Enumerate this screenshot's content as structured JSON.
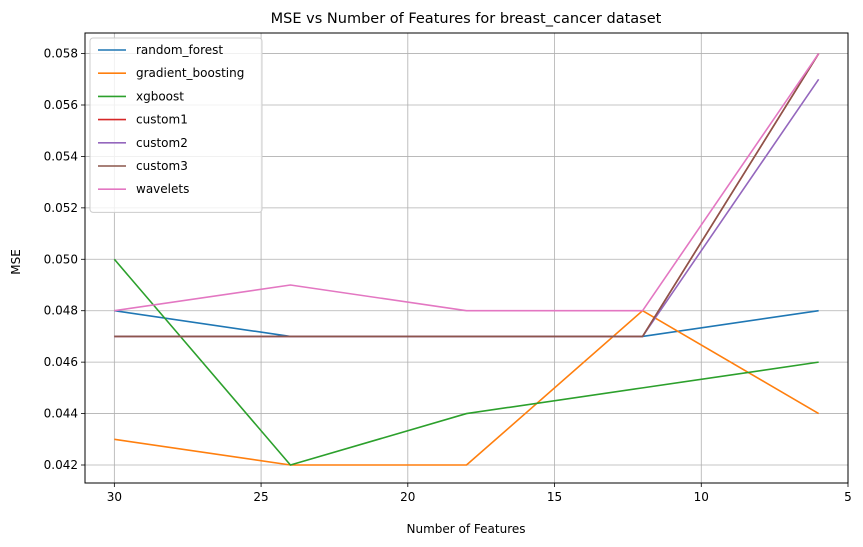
{
  "chart_data": {
    "type": "line",
    "title": "MSE vs Number of Features for breast_cancer dataset",
    "xlabel": "Number of Features",
    "ylabel": "MSE",
    "x": [
      30,
      24,
      18,
      12,
      6
    ],
    "xlim": [
      31,
      5
    ],
    "ylim": [
      0.0413,
      0.0588
    ],
    "x_inverted": true,
    "xticks": [
      30,
      25,
      20,
      15,
      10,
      5
    ],
    "yticks": [
      0.042,
      0.044,
      0.046,
      0.048,
      0.05,
      0.052,
      0.054,
      0.056,
      0.058
    ],
    "ytick_labels": [
      "0.042",
      "0.044",
      "0.046",
      "0.048",
      "0.050",
      "0.052",
      "0.054",
      "0.056",
      "0.058"
    ],
    "grid": true,
    "legend_position": "upper-left",
    "series": [
      {
        "name": "random_forest",
        "color": "#1f77b4",
        "values": [
          0.048,
          0.047,
          0.047,
          0.047,
          0.048
        ]
      },
      {
        "name": "gradient_boosting",
        "color": "#ff7f0e",
        "values": [
          0.043,
          0.042,
          0.042,
          0.048,
          0.044
        ]
      },
      {
        "name": "xgboost",
        "color": "#2ca02c",
        "values": [
          0.05,
          0.042,
          0.044,
          0.045,
          0.046
        ]
      },
      {
        "name": "custom1",
        "color": "#d62728",
        "values": [
          0.047,
          0.047,
          0.047,
          0.047,
          0.058
        ]
      },
      {
        "name": "custom2",
        "color": "#9467bd",
        "values": [
          0.047,
          0.047,
          0.047,
          0.047,
          0.057
        ]
      },
      {
        "name": "custom3",
        "color": "#8c564b",
        "values": [
          0.047,
          0.047,
          0.047,
          0.047,
          0.058
        ]
      },
      {
        "name": "wavelets",
        "color": "#e377c2",
        "values": [
          0.048,
          0.049,
          0.048,
          0.048,
          0.058
        ]
      }
    ]
  }
}
